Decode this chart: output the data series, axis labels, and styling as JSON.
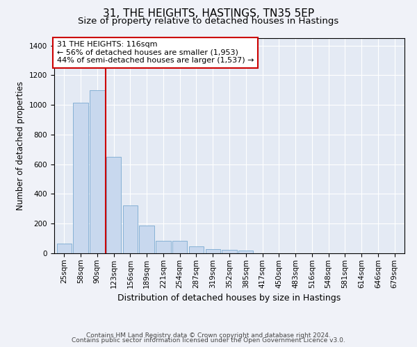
{
  "title": "31, THE HEIGHTS, HASTINGS, TN35 5EP",
  "subtitle": "Size of property relative to detached houses in Hastings",
  "xlabel": "Distribution of detached houses by size in Hastings",
  "ylabel": "Number of detached properties",
  "bar_color": "#c8d8ee",
  "bar_edge_color": "#7aaad0",
  "background_color": "#f0f2f8",
  "plot_bg_color": "#e4eaf4",
  "grid_color": "#ffffff",
  "annotation_line_color": "#cc0000",
  "categories": [
    "25sqm",
    "58sqm",
    "90sqm",
    "123sqm",
    "156sqm",
    "189sqm",
    "221sqm",
    "254sqm",
    "287sqm",
    "319sqm",
    "352sqm",
    "385sqm",
    "417sqm",
    "450sqm",
    "483sqm",
    "516sqm",
    "548sqm",
    "581sqm",
    "614sqm",
    "646sqm",
    "679sqm"
  ],
  "values": [
    65,
    1015,
    1100,
    650,
    325,
    185,
    85,
    85,
    45,
    28,
    25,
    18,
    0,
    0,
    0,
    0,
    0,
    0,
    0,
    0,
    0
  ],
  "annotation_text": "31 THE HEIGHTS: 116sqm\n← 56% of detached houses are smaller (1,953)\n44% of semi-detached houses are larger (1,537) →",
  "red_line_x": 2.5,
  "ylim": [
    0,
    1450
  ],
  "yticks": [
    0,
    200,
    400,
    600,
    800,
    1000,
    1200,
    1400
  ],
  "footer_line1": "Contains HM Land Registry data © Crown copyright and database right 2024.",
  "footer_line2": "Contains public sector information licensed under the Open Government Licence v3.0.",
  "title_fontsize": 11,
  "subtitle_fontsize": 9.5,
  "xlabel_fontsize": 9,
  "ylabel_fontsize": 8.5,
  "tick_fontsize": 7.5,
  "annotation_fontsize": 8,
  "footer_fontsize": 6.5
}
